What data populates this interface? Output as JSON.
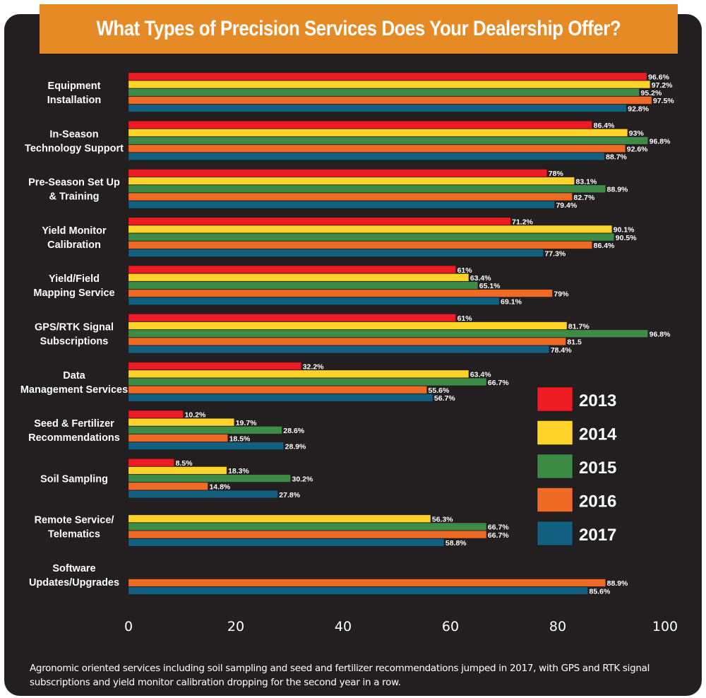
{
  "chart_data": {
    "type": "bar",
    "orientation": "horizontal",
    "title": "What Types of Precision Services Does Your Dealership Offer?",
    "xlabel": "",
    "ylabel": "",
    "xlim": [
      0,
      100
    ],
    "xticks": [
      0,
      20,
      40,
      60,
      80,
      100
    ],
    "grid": false,
    "legend_position": "right",
    "categories": [
      [
        "Equipment",
        "Installation"
      ],
      [
        "In-Season",
        "Technology Support"
      ],
      [
        "Pre-Season Set Up",
        "& Training"
      ],
      [
        "Yield Monitor",
        "Calibration"
      ],
      [
        "Yield/Field",
        "Mapping Service"
      ],
      [
        "GPS/RTK Signal",
        "Subscriptions"
      ],
      [
        "Data",
        "Management Services"
      ],
      [
        "Seed & Fertilizer",
        "Recommendations"
      ],
      [
        "Soil Sampling"
      ],
      [
        "Remote Service/",
        "Telematics"
      ],
      [
        "Software",
        "Updates/Upgrades"
      ]
    ],
    "series": [
      {
        "name": "2013",
        "color": "#ed1c24",
        "values": [
          96.6,
          86.4,
          78,
          71.2,
          61,
          61,
          32.2,
          10.2,
          8.5,
          null,
          null
        ],
        "labels": [
          "96.6%",
          "86.4%",
          "78%",
          "71.2%",
          "61%",
          "61%",
          "32.2%",
          "10.2%",
          "8.5%",
          null,
          null
        ]
      },
      {
        "name": "2014",
        "color": "#ffd32a",
        "values": [
          97.2,
          93,
          83.1,
          90.1,
          63.4,
          81.7,
          63.4,
          19.7,
          18.3,
          56.3,
          null
        ],
        "labels": [
          "97.2%",
          "93%",
          "83.1%",
          "90.1%",
          "63.4%",
          "81.7%",
          "63.4%",
          "19.7%",
          "18.3%",
          "56.3%",
          null
        ]
      },
      {
        "name": "2015",
        "color": "#3e8b47",
        "values": [
          95.2,
          96.8,
          88.9,
          90.5,
          65.1,
          96.8,
          66.7,
          28.6,
          30.2,
          66.7,
          null
        ],
        "labels": [
          "95.2%",
          "96.8%",
          "88.9%",
          "90.5%",
          "65.1%",
          "96.8%",
          "66.7%",
          "28.6%",
          "30.2%",
          "66.7%",
          null
        ]
      },
      {
        "name": "2016",
        "color": "#ee6a25",
        "values": [
          97.5,
          92.6,
          82.7,
          86.4,
          79,
          81.5,
          55.6,
          18.5,
          14.8,
          66.7,
          88.9
        ],
        "labels": [
          "97.5%",
          "92.6%",
          "82.7%",
          "86.4%",
          "79%",
          "81.5",
          "55.6%",
          "18.5%",
          "14.8%",
          "66.7%",
          "88.9%"
        ]
      },
      {
        "name": "2017",
        "color": "#135f7f",
        "values": [
          92.8,
          88.7,
          79.4,
          77.3,
          69.1,
          78.4,
          56.7,
          28.9,
          27.8,
          58.8,
          85.6
        ],
        "labels": [
          "92.8%",
          "88.7%",
          "79.4%",
          "77.3%",
          "69.1%",
          "78.4%",
          "56.7%",
          "28.9%",
          "27.8%",
          "58.8%",
          "85.6%"
        ]
      }
    ]
  },
  "caption": "Agronomic oriented services including soil sampling and seed and fertilizer recommendations jumped in 2017, with GPS and RTK signal subscriptions and yield monitor calibration dropping for the second year in a row.",
  "colors": {
    "panel_background": "#231f20",
    "title_banner": "#e68a25",
    "text": "#ffffff"
  }
}
